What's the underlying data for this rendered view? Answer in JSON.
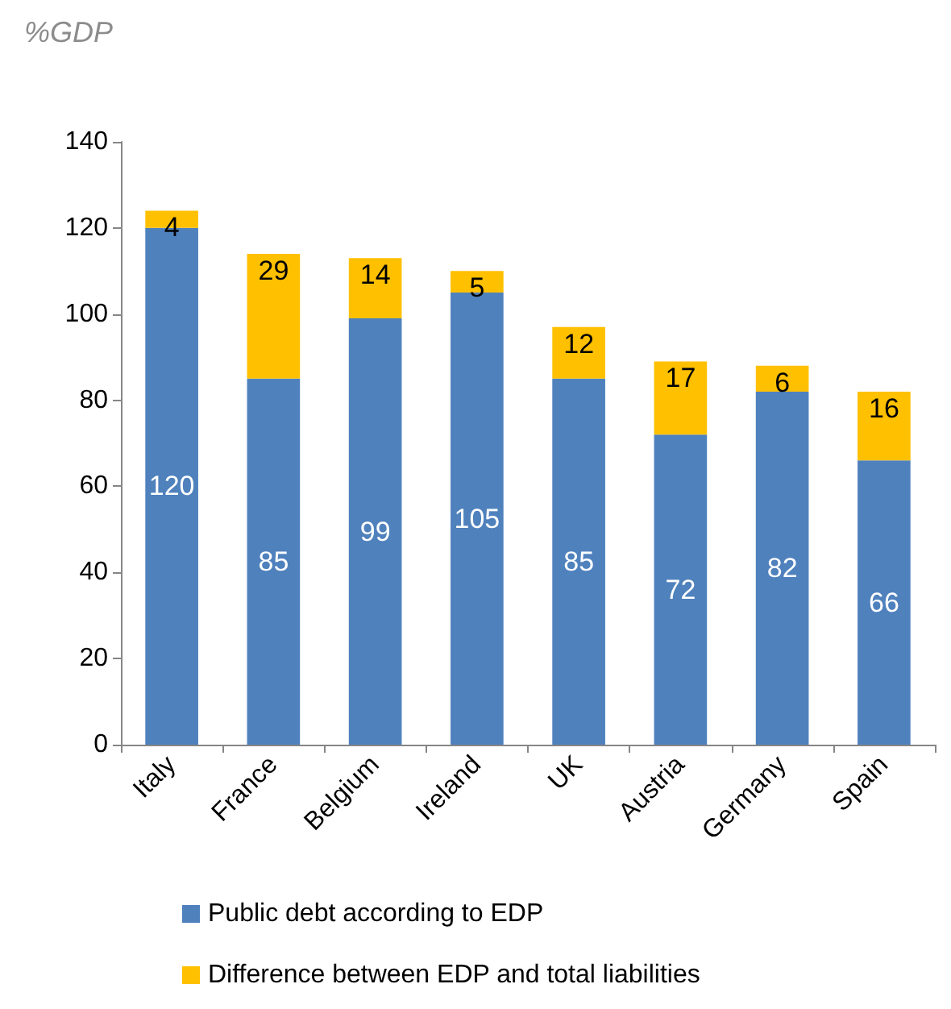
{
  "chart_data": {
    "type": "bar",
    "ylabel": "%GDP",
    "categories": [
      "Italy",
      "France",
      "Belgium",
      "Ireland",
      "UK",
      "Austria",
      "Germany",
      "Spain"
    ],
    "series": [
      {
        "name": "Public debt according to EDP",
        "color": "#4f81bd",
        "values": [
          120,
          85,
          99,
          105,
          85,
          72,
          82,
          66
        ]
      },
      {
        "name": "Difference between EDP and total liabilities",
        "color": "#ffc000",
        "values": [
          4,
          29,
          14,
          5,
          12,
          17,
          6,
          16
        ]
      }
    ],
    "stacked": true,
    "ylim": [
      0,
      140
    ],
    "yticks": [
      0,
      20,
      40,
      60,
      80,
      100,
      120,
      140
    ],
    "grid": false,
    "legend": "bottom",
    "data_labels": true
  }
}
